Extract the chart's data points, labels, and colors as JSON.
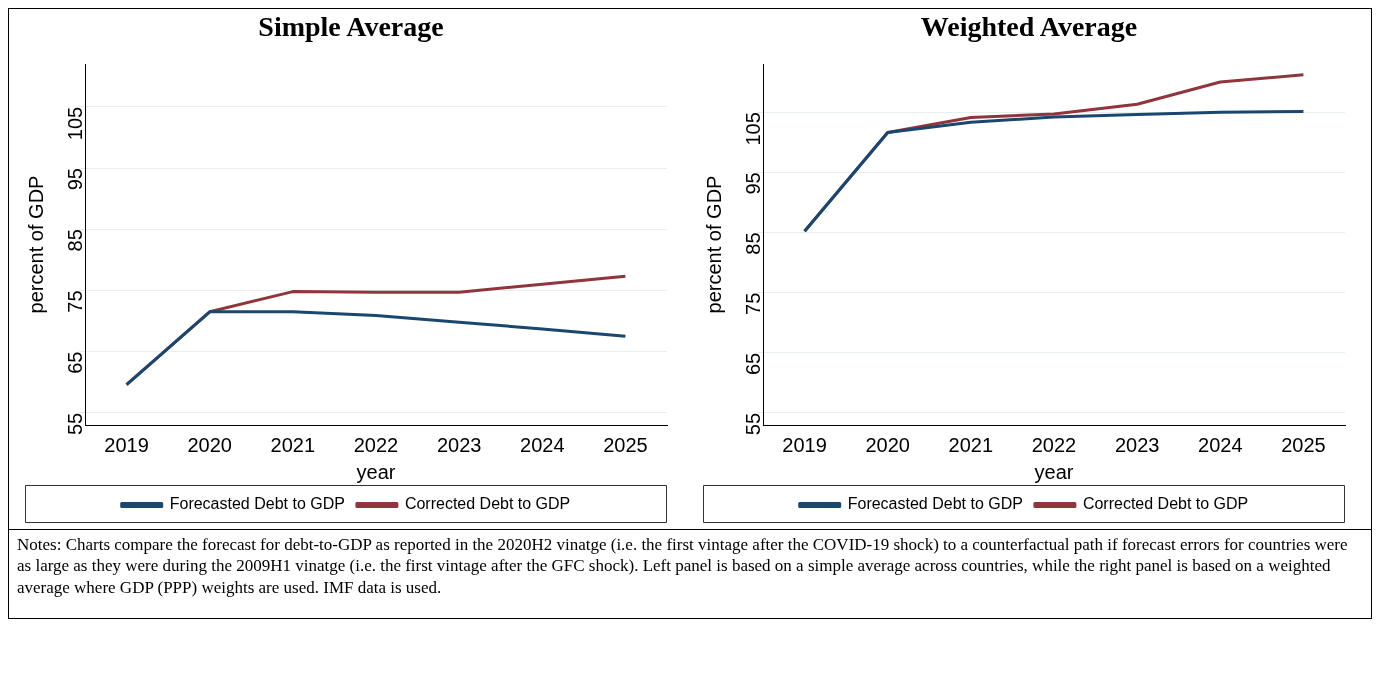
{
  "chart_data": [
    {
      "type": "line",
      "title": "Simple Average",
      "xlabel": "year",
      "ylabel": "percent of GDP",
      "categories": [
        "2019",
        "2020",
        "2021",
        "2022",
        "2023",
        "2024",
        "2025"
      ],
      "series": [
        {
          "name": "Forecasted Debt to GDP",
          "color": "#1a476f",
          "values": [
            59.6,
            71.5,
            71.5,
            70.9,
            69.8,
            68.7,
            67.5
          ]
        },
        {
          "name": "Corrected Debt to GDP",
          "color": "#90353b",
          "values": [
            59.6,
            71.5,
            74.8,
            74.7,
            74.7,
            76.0,
            77.3
          ]
        }
      ],
      "ylim": [
        53,
        112
      ],
      "yticks": [
        55,
        65,
        75,
        85,
        95,
        105
      ],
      "grid": "y",
      "legend": "bottom"
    },
    {
      "type": "line",
      "title": "Weighted Average",
      "xlabel": "year",
      "ylabel": "percent of GDP",
      "categories": [
        "2019",
        "2020",
        "2021",
        "2022",
        "2023",
        "2024",
        "2025"
      ],
      "series": [
        {
          "name": "Forecasted Debt to GDP",
          "color": "#1a476f",
          "values": [
            85.2,
            101.6,
            103.3,
            104.2,
            104.6,
            105.0,
            105.1
          ]
        },
        {
          "name": "Corrected Debt to GDP",
          "color": "#90353b",
          "values": [
            85.2,
            101.6,
            104.1,
            104.7,
            106.3,
            110.0,
            111.2
          ]
        }
      ],
      "ylim": [
        53,
        113
      ],
      "yticks": [
        55,
        65,
        75,
        85,
        95,
        105
      ],
      "grid": "y",
      "legend": "bottom",
      "annotations": [
        "Notes: Charts compare the forecast for debt-to-GDP as reported in the 2020H2 vinatge (i.e. the first vintage after the COVID-19 shock) to a counterfactual path if forecast errors for countries were as large as they were during the 2009H1 vinatge (i.e. the first vintage after the GFC shock). Left panel is based on a simple average across countries, while the right panel is based on a weighted average where GDP (PPP) weights are used. IMF data is used."
      ]
    }
  ]
}
